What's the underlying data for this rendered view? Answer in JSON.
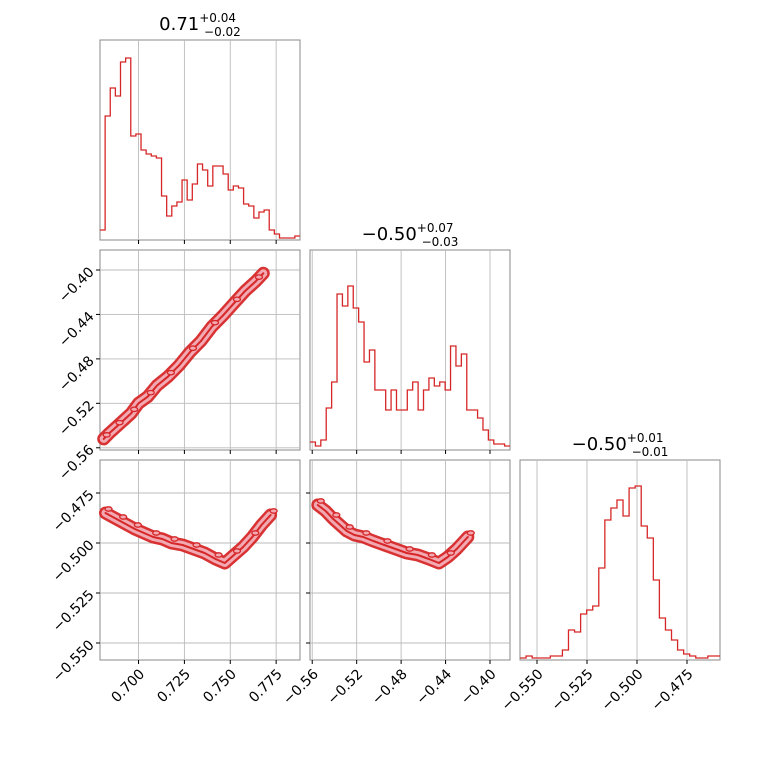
{
  "chart_data": {
    "type": "corner",
    "color": "#d62728",
    "fill_color": "#f2a9b2",
    "grid": true,
    "titles": [
      {
        "main": "0.71",
        "sup": "+0.04",
        "sub": "−0.02"
      },
      {
        "main": "−0.50",
        "sup": "+0.07",
        "sub": "−0.03"
      },
      {
        "main": "−0.50",
        "sup": "+0.01",
        "sub": "−0.01"
      }
    ],
    "params": [
      {
        "range": [
          0.679,
          0.788
        ],
        "ticks": [
          0.7,
          0.725,
          0.75,
          0.775
        ],
        "tick_labels": [
          "0.700",
          "0.725",
          "0.750",
          "0.775"
        ]
      },
      {
        "range": [
          -0.562,
          -0.382
        ],
        "ticks": [
          -0.56,
          -0.52,
          -0.48,
          -0.44,
          -0.4
        ],
        "tick_labels": [
          "−0.56",
          "−0.52",
          "−0.48",
          "−0.44",
          "−0.40"
        ],
        "xticks": [
          -0.56,
          -0.52,
          -0.48,
          -0.44,
          -0.4
        ],
        "xtick_labels": [
          "−0.56",
          "−0.52",
          "−0.48",
          "−0.44",
          "−0.40"
        ],
        "yticks": [
          -0.56,
          -0.52,
          -0.48,
          -0.44,
          -0.4
        ],
        "ytick_labels": [
          "−0.56",
          "−0.52",
          "−0.48",
          "−0.44",
          "−0.40"
        ]
      },
      {
        "range": [
          -0.5585,
          -0.4585
        ],
        "ticks": [
          -0.55,
          -0.525,
          -0.5,
          -0.475
        ],
        "tick_labels": [
          "−0.550",
          "−0.525",
          "−0.500",
          "−0.475"
        ]
      }
    ],
    "hist": [
      [
        0.05,
        0.62,
        0.76,
        0.72,
        0.89,
        0.91,
        0.52,
        0.53,
        0.45,
        0.43,
        0.42,
        0.41,
        0.22,
        0.12,
        0.17,
        0.19,
        0.3,
        0.2,
        0.28,
        0.38,
        0.35,
        0.27,
        0.37,
        0.37,
        0.33,
        0.25,
        0.27,
        0.26,
        0.18,
        0.17,
        0.11,
        0.14,
        0.15,
        0.05,
        0.03,
        0.01,
        0.01,
        0.01,
        0.02
      ],
      [
        0.04,
        0.02,
        0.05,
        0.21,
        0.34,
        0.78,
        0.72,
        0.82,
        0.71,
        0.64,
        0.44,
        0.5,
        0.3,
        0.3,
        0.2,
        0.3,
        0.2,
        0.2,
        0.3,
        0.34,
        0.2,
        0.3,
        0.36,
        0.32,
        0.34,
        0.3,
        0.52,
        0.42,
        0.48,
        0.2,
        0.2,
        0.16,
        0.1,
        0.05,
        0.03,
        0.03,
        0.02
      ],
      [
        0.01,
        0.02,
        0.01,
        0.01,
        0.01,
        0.02,
        0.02,
        0.05,
        0.15,
        0.14,
        0.23,
        0.25,
        0.27,
        0.46,
        0.7,
        0.76,
        0.8,
        0.72,
        0.86,
        0.87,
        0.67,
        0.61,
        0.4,
        0.21,
        0.15,
        0.1,
        0.05,
        0.03,
        0.02,
        0.01,
        0.01,
        0.02,
        0.02
      ]
    ],
    "pairs": [
      {
        "x": 0,
        "y": 1,
        "points": [
          [
            0.681,
            -0.552
          ],
          [
            0.684,
            -0.547
          ],
          [
            0.688,
            -0.541
          ],
          [
            0.692,
            -0.535
          ],
          [
            0.696,
            -0.529
          ],
          [
            0.7,
            -0.52
          ],
          [
            0.705,
            -0.514
          ],
          [
            0.71,
            -0.504
          ],
          [
            0.716,
            -0.496
          ],
          [
            0.722,
            -0.486
          ],
          [
            0.728,
            -0.474
          ],
          [
            0.734,
            -0.464
          ],
          [
            0.74,
            -0.451
          ],
          [
            0.746,
            -0.441
          ],
          [
            0.752,
            -0.43
          ],
          [
            0.758,
            -0.419
          ],
          [
            0.764,
            -0.41
          ],
          [
            0.768,
            -0.403
          ]
        ]
      },
      {
        "x": 0,
        "y": 2,
        "points": [
          [
            0.682,
            -0.485
          ],
          [
            0.686,
            -0.487
          ],
          [
            0.69,
            -0.489
          ],
          [
            0.694,
            -0.491
          ],
          [
            0.698,
            -0.493
          ],
          [
            0.703,
            -0.495
          ],
          [
            0.708,
            -0.497
          ],
          [
            0.713,
            -0.498
          ],
          [
            0.718,
            -0.5
          ],
          [
            0.724,
            -0.501
          ],
          [
            0.73,
            -0.503
          ],
          [
            0.736,
            -0.505
          ],
          [
            0.742,
            -0.508
          ],
          [
            0.747,
            -0.51
          ],
          [
            0.752,
            -0.506
          ],
          [
            0.757,
            -0.502
          ],
          [
            0.762,
            -0.497
          ],
          [
            0.767,
            -0.491
          ],
          [
            0.772,
            -0.486
          ]
        ]
      },
      {
        "x": 1,
        "y": 2,
        "points": [
          [
            -0.555,
            -0.481
          ],
          [
            -0.548,
            -0.484
          ],
          [
            -0.541,
            -0.488
          ],
          [
            -0.535,
            -0.491
          ],
          [
            -0.529,
            -0.494
          ],
          [
            -0.522,
            -0.496
          ],
          [
            -0.514,
            -0.497
          ],
          [
            -0.505,
            -0.499
          ],
          [
            -0.495,
            -0.501
          ],
          [
            -0.485,
            -0.503
          ],
          [
            -0.475,
            -0.505
          ],
          [
            -0.465,
            -0.506
          ],
          [
            -0.455,
            -0.508
          ],
          [
            -0.446,
            -0.51
          ],
          [
            -0.438,
            -0.507
          ],
          [
            -0.43,
            -0.503
          ],
          [
            -0.42,
            -0.497
          ]
        ]
      }
    ]
  }
}
